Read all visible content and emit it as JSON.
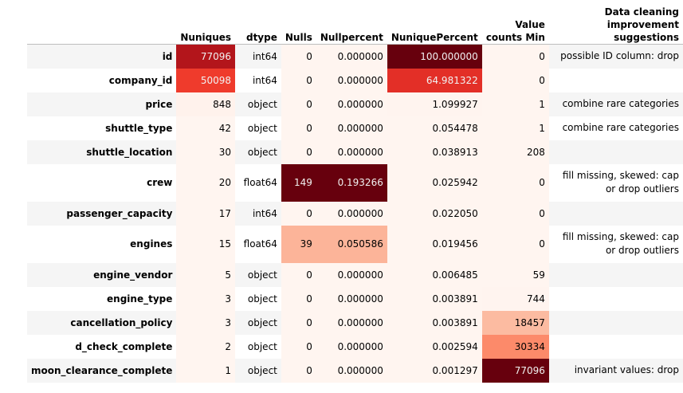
{
  "columns": {
    "nuniques": "Nuniques",
    "dtype": "dtype",
    "nulls": "Nulls",
    "nullpercent": "Nullpercent",
    "nuniquepercent": "NuniquePercent",
    "value_counts_min": "Value counts Min",
    "suggestions": "Data cleaning improvement suggestions"
  },
  "rows": [
    {
      "name": "id",
      "nuniques": "77096",
      "dtype": "int64",
      "nulls": "0",
      "nullpercent": "0.000000",
      "nuniquepercent": "100.000000",
      "vcmin": "0",
      "suggestion": "possible ID column: drop",
      "colors": {
        "nuniques": "#b3151b",
        "nulls": "#fff5f0",
        "nullpercent": "#fff5f0",
        "nuniquepercent": "#67000d",
        "vcmin": "#fff5f0"
      },
      "dark": {
        "nuniques": true,
        "nuniquepercent": true
      }
    },
    {
      "name": "company_id",
      "nuniques": "50098",
      "dtype": "int64",
      "nulls": "0",
      "nullpercent": "0.000000",
      "nuniquepercent": "64.981322",
      "vcmin": "0",
      "suggestion": "",
      "colors": {
        "nuniques": "#ef3b2c",
        "nulls": "#fff5f0",
        "nullpercent": "#fff5f0",
        "nuniquepercent": "#e32f27",
        "vcmin": "#fff5f0"
      },
      "dark": {
        "nuniques": true,
        "nuniquepercent": true
      }
    },
    {
      "name": "price",
      "nuniques": "848",
      "dtype": "object",
      "nulls": "0",
      "nullpercent": "0.000000",
      "nuniquepercent": "1.099927",
      "vcmin": "1",
      "suggestion": "combine rare categories",
      "colors": {
        "nuniques": "#fff2ec",
        "nulls": "#fff5f0",
        "nullpercent": "#fff5f0",
        "nuniquepercent": "#fff4ef",
        "vcmin": "#fff5f0"
      }
    },
    {
      "name": "shuttle_type",
      "nuniques": "42",
      "dtype": "object",
      "nulls": "0",
      "nullpercent": "0.000000",
      "nuniquepercent": "0.054478",
      "vcmin": "1",
      "suggestion": "combine rare categories",
      "colors": {
        "nuniques": "#fff5f0",
        "nulls": "#fff5f0",
        "nullpercent": "#fff5f0",
        "nuniquepercent": "#fff5f0",
        "vcmin": "#fff5f0"
      }
    },
    {
      "name": "shuttle_location",
      "nuniques": "30",
      "dtype": "object",
      "nulls": "0",
      "nullpercent": "0.000000",
      "nuniquepercent": "0.038913",
      "vcmin": "208",
      "suggestion": "",
      "colors": {
        "nuniques": "#fff5f0",
        "nulls": "#fff5f0",
        "nullpercent": "#fff5f0",
        "nuniquepercent": "#fff5f0",
        "vcmin": "#fff5f0"
      }
    },
    {
      "name": "crew",
      "nuniques": "20",
      "dtype": "float64",
      "nulls": "149",
      "nullpercent": "0.193266",
      "nuniquepercent": "0.025942",
      "vcmin": "0",
      "suggestion": "fill missing, skewed: cap or drop outliers",
      "colors": {
        "nuniques": "#fff5f0",
        "nulls": "#67000d",
        "nullpercent": "#67000d",
        "nuniquepercent": "#fff5f0",
        "vcmin": "#fff5f0"
      },
      "dark": {
        "nulls": true,
        "nullpercent": true
      },
      "tall": true
    },
    {
      "name": "passenger_capacity",
      "nuniques": "17",
      "dtype": "int64",
      "nulls": "0",
      "nullpercent": "0.000000",
      "nuniquepercent": "0.022050",
      "vcmin": "0",
      "suggestion": "",
      "colors": {
        "nuniques": "#fff5f0",
        "nulls": "#fff5f0",
        "nullpercent": "#fff5f0",
        "nuniquepercent": "#fff5f0",
        "vcmin": "#fff5f0"
      }
    },
    {
      "name": "engines",
      "nuniques": "15",
      "dtype": "float64",
      "nulls": "39",
      "nullpercent": "0.050586",
      "nuniquepercent": "0.019456",
      "vcmin": "0",
      "suggestion": "fill missing, skewed: cap or drop outliers",
      "colors": {
        "nuniques": "#fff5f0",
        "nulls": "#fcb499",
        "nullpercent": "#fcb499",
        "nuniquepercent": "#fff5f0",
        "vcmin": "#fff5f0"
      },
      "tall": true
    },
    {
      "name": "engine_vendor",
      "nuniques": "5",
      "dtype": "object",
      "nulls": "0",
      "nullpercent": "0.000000",
      "nuniquepercent": "0.006485",
      "vcmin": "59",
      "suggestion": "",
      "colors": {
        "nuniques": "#fff5f0",
        "nulls": "#fff5f0",
        "nullpercent": "#fff5f0",
        "nuniquepercent": "#fff5f0",
        "vcmin": "#fff5f0"
      }
    },
    {
      "name": "engine_type",
      "nuniques": "3",
      "dtype": "object",
      "nulls": "0",
      "nullpercent": "0.000000",
      "nuniquepercent": "0.003891",
      "vcmin": "744",
      "suggestion": "",
      "colors": {
        "nuniques": "#fff5f0",
        "nulls": "#fff5f0",
        "nullpercent": "#fff5f0",
        "nuniquepercent": "#fff5f0",
        "vcmin": "#fff4ef"
      }
    },
    {
      "name": "cancellation_policy",
      "nuniques": "3",
      "dtype": "object",
      "nulls": "0",
      "nullpercent": "0.000000",
      "nuniquepercent": "0.003891",
      "vcmin": "18457",
      "suggestion": "",
      "colors": {
        "nuniques": "#fff5f0",
        "nulls": "#fff5f0",
        "nullpercent": "#fff5f0",
        "nuniquepercent": "#fff5f0",
        "vcmin": "#fcbba1"
      }
    },
    {
      "name": "d_check_complete",
      "nuniques": "2",
      "dtype": "object",
      "nulls": "0",
      "nullpercent": "0.000000",
      "nuniquepercent": "0.002594",
      "vcmin": "30334",
      "suggestion": "",
      "colors": {
        "nuniques": "#fff5f0",
        "nulls": "#fff5f0",
        "nullpercent": "#fff5f0",
        "nuniquepercent": "#fff5f0",
        "vcmin": "#fc8a6a"
      }
    },
    {
      "name": "moon_clearance_complete",
      "nuniques": "1",
      "dtype": "object",
      "nulls": "0",
      "nullpercent": "0.000000",
      "nuniquepercent": "0.001297",
      "vcmin": "77096",
      "suggestion": "invariant values: drop",
      "colors": {
        "nuniques": "#fff5f0",
        "nulls": "#fff5f0",
        "nullpercent": "#fff5f0",
        "nuniquepercent": "#fff5f0",
        "vcmin": "#67000d"
      },
      "dark": {
        "vcmin": true
      }
    }
  ]
}
